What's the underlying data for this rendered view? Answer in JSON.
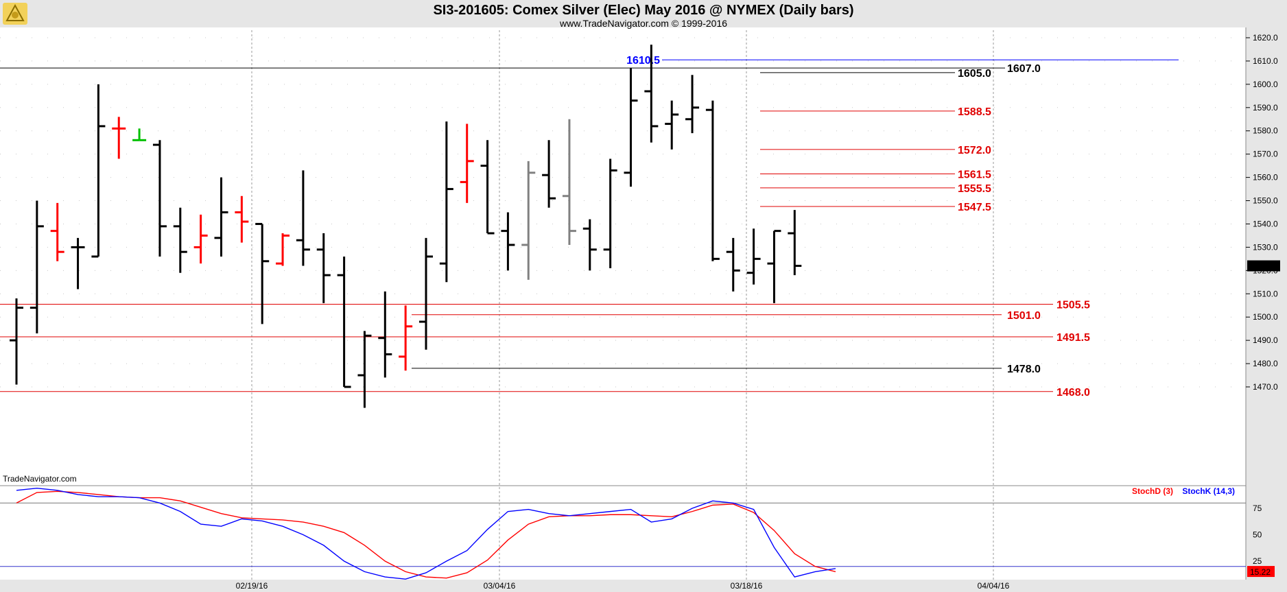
{
  "header": {
    "title": "SI3-201605:  Comex Silver (Elec) May 2016 @ NYMEX  (Daily bars)",
    "subtitle": "www.TradeNavigator.com © 1999-2016",
    "watermark": "TradeNavigator.com",
    "logo_icon": "sextant-logo-icon"
  },
  "chart_data": [
    {
      "type": "ohlc",
      "name": "price",
      "y_range": [
        1460,
        1625
      ],
      "y_ticks": [
        "1620.0",
        "1610.0",
        "1600.0",
        "1590.0",
        "1580.0",
        "1570.0",
        "1560.0",
        "1550.0",
        "1540.0",
        "1530.0",
        "1520.0",
        "1510.0",
        "1500.0",
        "1490.0",
        "1480.0",
        "1470.0"
      ],
      "last_price": "1522.0",
      "x_labels": [
        "02/19/16",
        "03/04/16",
        "03/18/16",
        "04/04/16"
      ],
      "bars": [
        {
          "h": 1508,
          "l": 1471,
          "o": 1490,
          "c": 1504,
          "color": "#000000"
        },
        {
          "h": 1550,
          "l": 1493,
          "o": 1504,
          "c": 1539,
          "color": "#000000"
        },
        {
          "h": 1549,
          "l": 1524,
          "o": 1537,
          "c": 1528,
          "color": "#ff0000"
        },
        {
          "h": 1534,
          "l": 1512,
          "o": 1530,
          "c": 1530,
          "color": "#000000"
        },
        {
          "h": 1600,
          "l": 1526,
          "o": 1526,
          "c": 1582,
          "color": "#000000"
        },
        {
          "h": 1586,
          "l": 1568,
          "o": 1581,
          "c": 1581,
          "color": "#ff0000"
        },
        {
          "h": 1581,
          "l": 1576,
          "o": 1576,
          "c": 1576,
          "color": "#00c000"
        },
        {
          "h": 1576,
          "l": 1526,
          "o": 1574,
          "c": 1539,
          "color": "#000000"
        },
        {
          "h": 1547,
          "l": 1519,
          "o": 1539,
          "c": 1528,
          "color": "#000000"
        },
        {
          "h": 1544,
          "l": 1523,
          "o": 1530,
          "c": 1535,
          "color": "#ff0000"
        },
        {
          "h": 1560,
          "l": 1526,
          "o": 1534,
          "c": 1545,
          "color": "#000000"
        },
        {
          "h": 1552,
          "l": 1532,
          "o": 1545,
          "c": 1541,
          "color": "#ff0000"
        },
        {
          "h": 1540,
          "l": 1497,
          "o": 1540,
          "c": 1524,
          "color": "#000000"
        },
        {
          "h": 1536,
          "l": 1522,
          "o": 1523,
          "c": 1535,
          "color": "#ff0000"
        },
        {
          "h": 1563,
          "l": 1522,
          "o": 1533,
          "c": 1529,
          "color": "#000000"
        },
        {
          "h": 1536,
          "l": 1506,
          "o": 1529,
          "c": 1518,
          "color": "#000000"
        },
        {
          "h": 1526,
          "l": 1470,
          "o": 1518,
          "c": 1470,
          "color": "#000000"
        },
        {
          "h": 1494,
          "l": 1461,
          "o": 1475,
          "c": 1492,
          "color": "#000000"
        },
        {
          "h": 1511,
          "l": 1474,
          "o": 1491,
          "c": 1484,
          "color": "#000000"
        },
        {
          "h": 1505,
          "l": 1477,
          "o": 1483,
          "c": 1496,
          "color": "#ff0000"
        },
        {
          "h": 1534,
          "l": 1486,
          "o": 1498,
          "c": 1526,
          "color": "#000000"
        },
        {
          "h": 1584,
          "l": 1515,
          "o": 1523,
          "c": 1555,
          "color": "#000000"
        },
        {
          "h": 1583,
          "l": 1549,
          "o": 1558,
          "c": 1567,
          "color": "#ff0000"
        },
        {
          "h": 1576,
          "l": 1536,
          "o": 1565,
          "c": 1536,
          "color": "#000000"
        },
        {
          "h": 1545,
          "l": 1520,
          "o": 1537,
          "c": 1531,
          "color": "#000000"
        },
        {
          "h": 1567,
          "l": 1516,
          "o": 1531,
          "c": 1562,
          "color": "#808080"
        },
        {
          "h": 1576,
          "l": 1547,
          "o": 1561,
          "c": 1551,
          "color": "#000000"
        },
        {
          "h": 1585,
          "l": 1531,
          "o": 1552,
          "c": 1537,
          "color": "#808080"
        },
        {
          "h": 1542,
          "l": 1520,
          "o": 1538,
          "c": 1529,
          "color": "#000000"
        },
        {
          "h": 1568,
          "l": 1521,
          "o": 1529,
          "c": 1563,
          "color": "#000000"
        },
        {
          "h": 1607,
          "l": 1556,
          "o": 1562,
          "c": 1593,
          "color": "#000000"
        },
        {
          "h": 1617,
          "l": 1575,
          "o": 1597,
          "c": 1582,
          "color": "#000000"
        },
        {
          "h": 1593,
          "l": 1572,
          "o": 1583,
          "c": 1587,
          "color": "#000000"
        },
        {
          "h": 1604,
          "l": 1579,
          "o": 1585,
          "c": 1590,
          "color": "#000000"
        },
        {
          "h": 1593,
          "l": 1524,
          "o": 1589,
          "c": 1525,
          "color": "#000000"
        },
        {
          "h": 1534,
          "l": 1511,
          "o": 1528,
          "c": 1520,
          "color": "#000000"
        },
        {
          "h": 1538,
          "l": 1514,
          "o": 1519,
          "c": 1525,
          "color": "#000000"
        },
        {
          "h": 1537,
          "l": 1506,
          "o": 1523,
          "c": 1537,
          "color": "#000000"
        },
        {
          "h": 1546,
          "l": 1518,
          "o": 1536,
          "c": 1522,
          "color": "#000000"
        }
      ],
      "levels": [
        {
          "label": "1610.5",
          "value": 1610.5,
          "color": "#0000ff",
          "style": "blue"
        },
        {
          "label": "1607.0",
          "value": 1607.0,
          "color": "#000000",
          "style": "full"
        },
        {
          "label": "1605.0",
          "value": 1605.0,
          "color": "#000000",
          "style": "seg"
        },
        {
          "label": "1588.5",
          "value": 1588.5,
          "color": "#e00000",
          "style": "seg"
        },
        {
          "label": "1572.0",
          "value": 1572.0,
          "color": "#e00000",
          "style": "seg"
        },
        {
          "label": "1561.5",
          "value": 1561.5,
          "color": "#e00000",
          "style": "seg"
        },
        {
          "label": "1555.5",
          "value": 1555.5,
          "color": "#e00000",
          "style": "seg"
        },
        {
          "label": "1547.5",
          "value": 1547.5,
          "color": "#e00000",
          "style": "seg"
        },
        {
          "label": "1505.5",
          "value": 1505.5,
          "color": "#e00000",
          "style": "full"
        },
        {
          "label": "1501.0",
          "value": 1501.0,
          "color": "#e00000",
          "style": "mid"
        },
        {
          "label": "1491.5",
          "value": 1491.5,
          "color": "#e00000",
          "style": "full"
        },
        {
          "label": "1478.0",
          "value": 1478.0,
          "color": "#000000",
          "style": "mid"
        },
        {
          "label": "1468.0",
          "value": 1468.0,
          "color": "#e00000",
          "style": "full"
        }
      ]
    },
    {
      "type": "line",
      "name": "stochastic",
      "y_range": [
        0,
        100
      ],
      "y_ticks": [
        "75",
        "50",
        "25"
      ],
      "last_value": "15.22",
      "series": [
        {
          "name": "StochD (3)",
          "color": "#ff0000",
          "values": [
            80,
            90,
            91,
            90,
            88,
            86,
            85,
            85,
            82,
            76,
            70,
            66,
            65,
            64,
            62,
            58,
            52,
            40,
            25,
            15,
            10,
            9,
            14,
            26,
            45,
            60,
            67,
            68,
            68,
            69,
            69,
            68,
            67,
            72,
            78,
            79,
            71,
            54,
            32,
            20,
            15
          ]
        },
        {
          "name": "StochK (14,3)",
          "color": "#0000ff",
          "values": [
            92,
            94,
            92,
            88,
            86,
            86,
            85,
            80,
            72,
            60,
            58,
            65,
            63,
            58,
            50,
            40,
            25,
            15,
            10,
            8,
            14,
            25,
            35,
            55,
            72,
            74,
            70,
            68,
            70,
            72,
            74,
            62,
            65,
            75,
            82,
            80,
            74,
            38,
            10,
            15,
            18
          ]
        }
      ]
    }
  ]
}
